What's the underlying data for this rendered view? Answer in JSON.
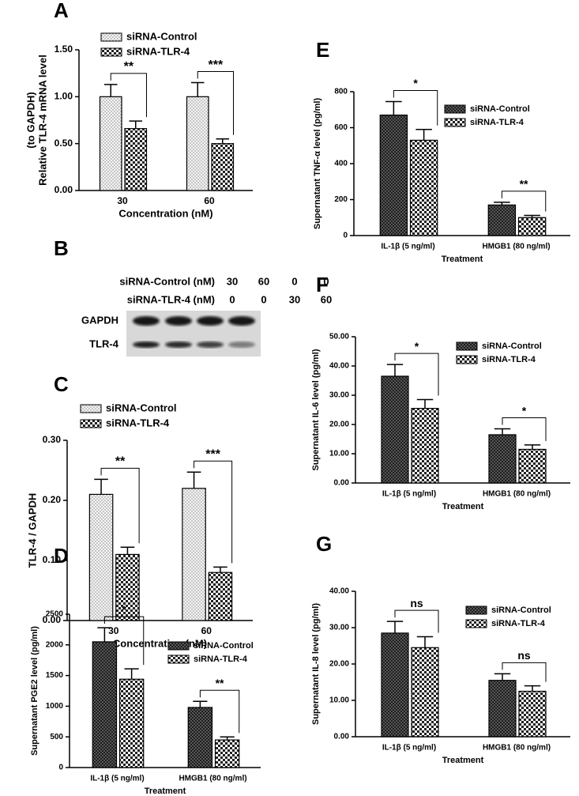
{
  "chart_data": [
    {
      "type": "bar",
      "panel": "A",
      "categories": [
        "30",
        "60"
      ],
      "series": [
        {
          "name": "siRNA-Control",
          "pattern": "dots",
          "values": [
            1.0,
            1.0
          ],
          "errors": [
            0.13,
            0.15
          ]
        },
        {
          "name": "siRNA-TLR-4",
          "pattern": "check",
          "values": [
            0.66,
            0.5
          ],
          "errors": [
            0.08,
            0.05
          ]
        }
      ],
      "ylim": [
        0,
        1.5
      ],
      "yticks": [
        {
          "value": 0,
          "label": "0.00"
        },
        {
          "value": 0.5,
          "label": "0.50"
        },
        {
          "value": 1,
          "label": "1.00"
        },
        {
          "value": 1.5,
          "label": "1.50"
        }
      ],
      "ylabel": [
        "Relative TLR-4 mRNA level",
        "(to GAPDH)"
      ],
      "xlabel": "Concentration (nM)",
      "annotations": [
        "**",
        "***"
      ]
    },
    {
      "type": "bar",
      "panel": "C",
      "categories": [
        "30",
        "60"
      ],
      "series": [
        {
          "name": "siRNA-Control",
          "pattern": "dots",
          "values": [
            0.21,
            0.22
          ],
          "errors": [
            0.025,
            0.027
          ]
        },
        {
          "name": "siRNA-TLR-4",
          "pattern": "check",
          "values": [
            0.11,
            0.08
          ],
          "errors": [
            0.012,
            0.009
          ]
        }
      ],
      "ylim": [
        0,
        0.3
      ],
      "yticks": [
        {
          "value": 0,
          "label": "0.00"
        },
        {
          "value": 0.1,
          "label": "0.10"
        },
        {
          "value": 0.2,
          "label": "0.20"
        },
        {
          "value": 0.3,
          "label": "0.30"
        }
      ],
      "ylabel": [
        "TLR-4 / GAPDH"
      ],
      "xlabel": "Concentration (nM)",
      "annotations": [
        "**",
        "***"
      ]
    },
    {
      "type": "bar",
      "panel": "D",
      "categories": [
        "IL-1β (5 ng/ml)",
        "HMGB1 (80 ng/ml)"
      ],
      "series": [
        {
          "name": "siRNA-Control",
          "pattern": "cross",
          "values": [
            2050,
            980
          ],
          "errors": [
            230,
            100
          ]
        },
        {
          "name": "siRNA-TLR-4",
          "pattern": "check",
          "values": [
            1440,
            450
          ],
          "errors": [
            170,
            50
          ]
        }
      ],
      "ylim": [
        0,
        2500
      ],
      "yticks": [
        0,
        500,
        1000,
        1500,
        2000,
        2500
      ],
      "ylabel": [
        "Supernatant PGE2 level (pg/ml)"
      ],
      "xlabel": "Treatment",
      "annotations": [
        "*",
        "**"
      ]
    },
    {
      "type": "bar",
      "panel": "E",
      "categories": [
        "IL-1β (5 ng/ml)",
        "HMGB1 (80 ng/ml)"
      ],
      "series": [
        {
          "name": "siRNA-Control",
          "pattern": "cross",
          "values": [
            670,
            170
          ],
          "errors": [
            75,
            15
          ]
        },
        {
          "name": "siRNA-TLR-4",
          "pattern": "check",
          "values": [
            530,
            100
          ],
          "errors": [
            60,
            12
          ]
        }
      ],
      "ylim": [
        0,
        800
      ],
      "yticks": [
        0,
        200,
        400,
        600,
        800
      ],
      "ylabel": [
        "Supernatant TNF-α level (pg/ml)"
      ],
      "xlabel": "Treatment",
      "annotations": [
        "*",
        "**"
      ]
    },
    {
      "type": "bar",
      "panel": "F",
      "categories": [
        "IL-1β (5 ng/ml)",
        "HMGB1 (80 ng/ml)"
      ],
      "series": [
        {
          "name": "siRNA-Control",
          "pattern": "cross",
          "values": [
            36.5,
            16.5
          ],
          "errors": [
            4,
            2
          ]
        },
        {
          "name": "siRNA-TLR-4",
          "pattern": "check",
          "values": [
            25.5,
            11.5
          ],
          "errors": [
            3,
            1.5
          ]
        }
      ],
      "ylim": [
        0,
        50
      ],
      "yticks": [
        {
          "value": 0,
          "label": "0.00"
        },
        {
          "value": 10,
          "label": "10.00"
        },
        {
          "value": 20,
          "label": "20.00"
        },
        {
          "value": 30,
          "label": "30.00"
        },
        {
          "value": 40,
          "label": "40.00"
        },
        {
          "value": 50,
          "label": "50.00"
        }
      ],
      "ylabel": [
        "Supernatant IL-6 level (pg/ml)"
      ],
      "xlabel": "Treatment",
      "annotations": [
        "*",
        "*"
      ]
    },
    {
      "type": "bar",
      "panel": "G",
      "categories": [
        "IL-1β (5 ng/ml)",
        "HMGB1 (80 ng/ml)"
      ],
      "series": [
        {
          "name": "siRNA-Control",
          "pattern": "cross",
          "values": [
            28.5,
            15.5
          ],
          "errors": [
            3.2,
            1.8
          ]
        },
        {
          "name": "siRNA-TLR-4",
          "pattern": "check",
          "values": [
            24.5,
            12.5
          ],
          "errors": [
            3,
            1.5
          ]
        }
      ],
      "ylim": [
        0,
        40
      ],
      "yticks": [
        {
          "value": 0,
          "label": "0.00"
        },
        {
          "value": 10,
          "label": "10.00"
        },
        {
          "value": 20,
          "label": "20.00"
        },
        {
          "value": 30,
          "label": "30.00"
        },
        {
          "value": 40,
          "label": "40.00"
        }
      ],
      "ylabel": [
        "Supernatant IL-8 level (pg/ml)"
      ],
      "xlabel": "Treatment",
      "annotations": [
        "ns",
        "ns"
      ]
    }
  ],
  "blot": {
    "panel": "B",
    "rows": [
      {
        "label": "siRNA-Control (nM)",
        "values": [
          "30",
          "60",
          "0",
          "0"
        ]
      },
      {
        "label": "siRNA-TLR-4 (nM)",
        "values": [
          "0",
          "0",
          "30",
          "60"
        ]
      }
    ],
    "bands": [
      "GAPDH",
      "TLR-4"
    ]
  }
}
